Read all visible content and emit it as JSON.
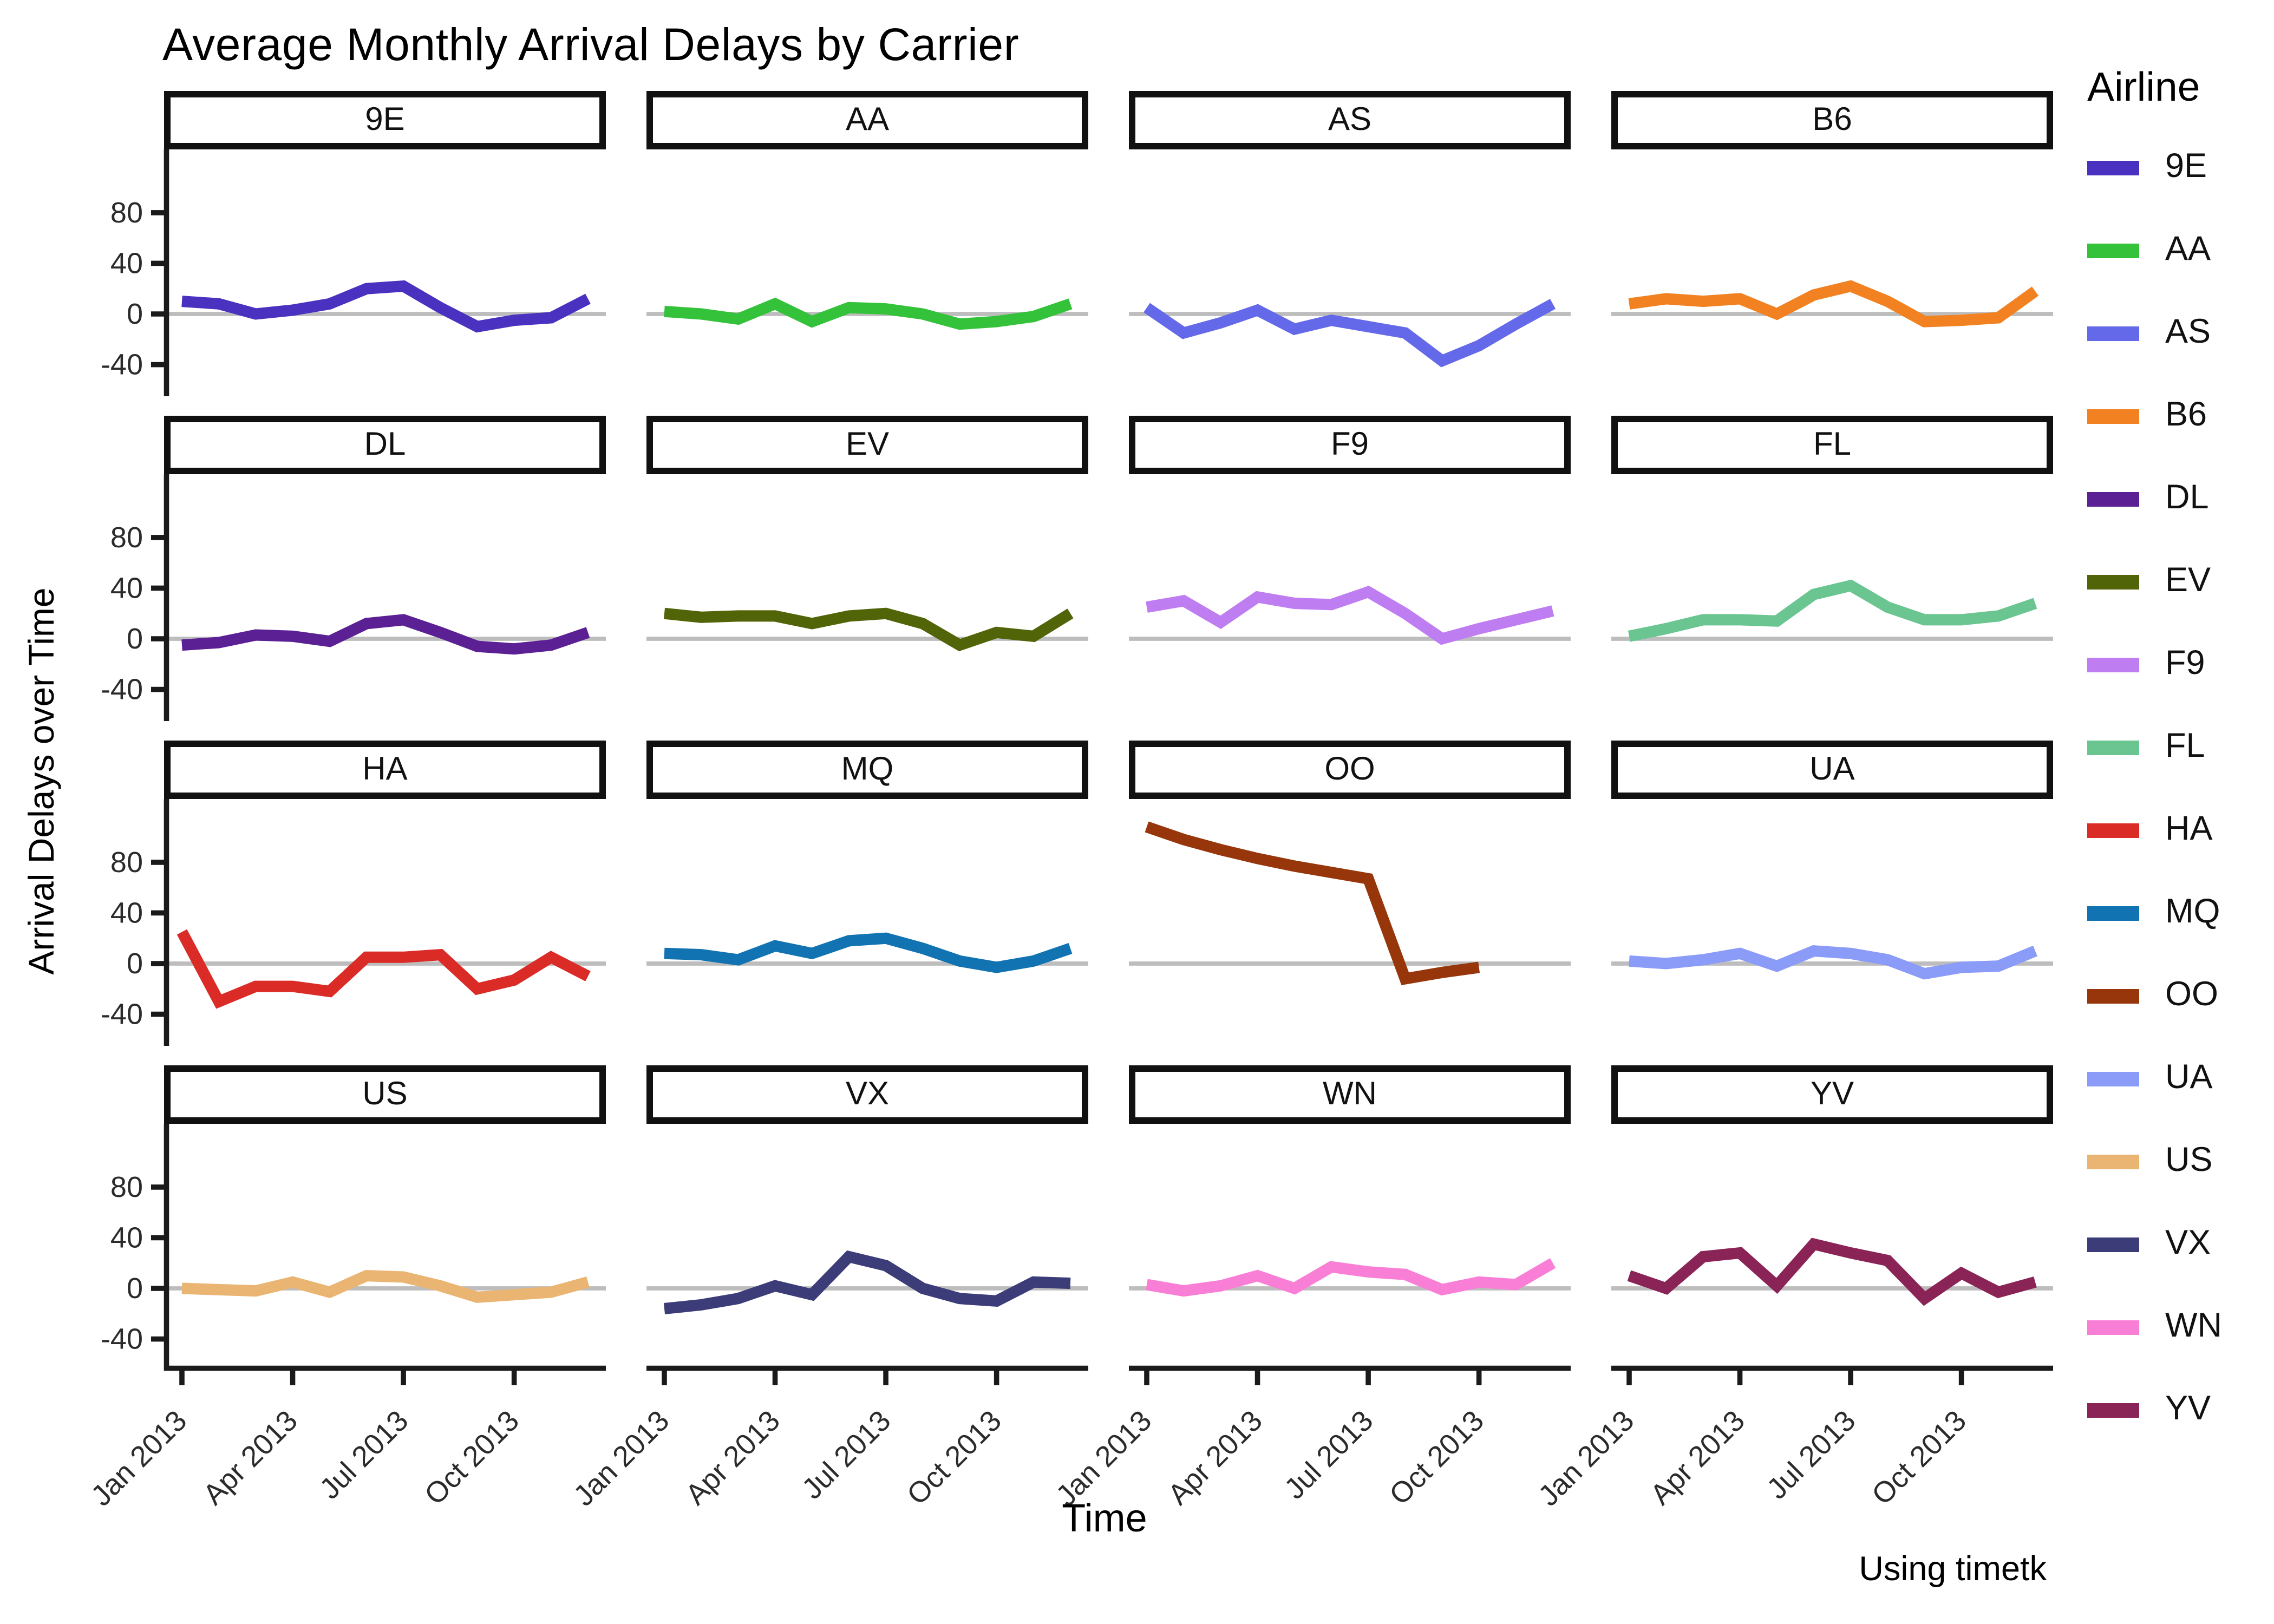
{
  "title": "Average Monthly Arrival Delays by Carrier",
  "footer": "Using timetk",
  "legend": {
    "title": "Airline"
  },
  "chart_data": {
    "type": "line",
    "title": "Average Monthly Arrival Delays by Carrier",
    "xlabel": "Time",
    "ylabel": "Arrival Delays over Time",
    "legend_position": "right",
    "grid": false,
    "zero_line_color": "#bdbdbd",
    "axis_color": "#1a1a1a",
    "facet_layout": [
      [
        "9E",
        "AA",
        "AS",
        "B6"
      ],
      [
        "DL",
        "EV",
        "F9",
        "FL"
      ],
      [
        "HA",
        "MQ",
        "OO",
        "UA"
      ],
      [
        "US",
        "VX",
        "WN",
        "YV"
      ]
    ],
    "x": [
      "Jan 2013",
      "Feb 2013",
      "Mar 2013",
      "Apr 2013",
      "May 2013",
      "Jun 2013",
      "Jul 2013",
      "Aug 2013",
      "Sep 2013",
      "Oct 2013",
      "Nov 2013",
      "Dec 2013"
    ],
    "x_tick_labels": [
      "Jan 2013",
      "Apr 2013",
      "Jul 2013",
      "Oct 2013"
    ],
    "x_tick_month_index": [
      0,
      3,
      6,
      9
    ],
    "y_ticks": [
      80,
      40,
      0,
      -40
    ],
    "ylim": [
      -65,
      130
    ],
    "series": [
      {
        "name": "9E",
        "color": "#4B31C0",
        "values": [
          10,
          8,
          0,
          3,
          8,
          20,
          22,
          5,
          -10,
          -5,
          -3,
          12
        ]
      },
      {
        "name": "AA",
        "color": "#35C23B",
        "values": [
          2,
          0,
          -4,
          8,
          -6,
          5,
          4,
          0,
          -8,
          -6,
          -2,
          8
        ]
      },
      {
        "name": "AS",
        "color": "#6469E9",
        "values": [
          5,
          -15,
          -7,
          3,
          -12,
          -5,
          -10,
          -15,
          -37,
          -25,
          -8,
          8
        ]
      },
      {
        "name": "B6",
        "color": "#F28221",
        "values": [
          8,
          12,
          10,
          12,
          0,
          15,
          22,
          10,
          -6,
          -5,
          -3,
          18
        ]
      },
      {
        "name": "DL",
        "color": "#5B2093",
        "values": [
          -5,
          -3,
          3,
          2,
          -2,
          12,
          15,
          5,
          -6,
          -8,
          -5,
          5
        ]
      },
      {
        "name": "EV",
        "color": "#526408",
        "values": [
          20,
          17,
          18,
          18,
          12,
          18,
          20,
          12,
          -5,
          5,
          2,
          20
        ]
      },
      {
        "name": "F9",
        "color": "#BF7DF2",
        "values": [
          25,
          30,
          13,
          33,
          28,
          27,
          37,
          20,
          0,
          8,
          15,
          22
        ]
      },
      {
        "name": "FL",
        "color": "#6AC591",
        "values": [
          2,
          8,
          15,
          15,
          14,
          35,
          42,
          25,
          15,
          15,
          18,
          28
        ]
      },
      {
        "name": "HA",
        "color": "#DB2B27",
        "values": [
          25,
          -30,
          -18,
          -18,
          -22,
          5,
          5,
          7,
          -20,
          -13,
          5,
          -10
        ]
      },
      {
        "name": "MQ",
        "color": "#1173B2",
        "values": [
          8,
          7,
          3,
          14,
          8,
          18,
          20,
          12,
          2,
          -3,
          2,
          12
        ]
      },
      {
        "name": "OO",
        "color": "#96360A",
        "values": [
          108,
          98,
          90,
          83,
          77,
          72,
          67,
          -12,
          -7,
          -3,
          null,
          null
        ]
      },
      {
        "name": "UA",
        "color": "#8A9BF8",
        "values": [
          2,
          0,
          3,
          8,
          -2,
          10,
          8,
          3,
          -8,
          -3,
          -2,
          10
        ]
      },
      {
        "name": "US",
        "color": "#EAB572",
        "values": [
          0,
          -1,
          -2,
          5,
          -3,
          10,
          9,
          2,
          -7,
          -5,
          -3,
          5
        ]
      },
      {
        "name": "VX",
        "color": "#3C3C78",
        "values": [
          -16,
          -13,
          -8,
          2,
          -5,
          25,
          18,
          0,
          -8,
          -10,
          5,
          4
        ]
      },
      {
        "name": "WN",
        "color": "#F97ED6",
        "values": [
          3,
          -2,
          2,
          10,
          0,
          17,
          13,
          11,
          -1,
          5,
          3,
          20
        ]
      },
      {
        "name": "YV",
        "color": "#8A2356",
        "values": [
          10,
          0,
          25,
          28,
          2,
          35,
          28,
          22,
          -8,
          12,
          -3,
          5
        ]
      }
    ]
  }
}
